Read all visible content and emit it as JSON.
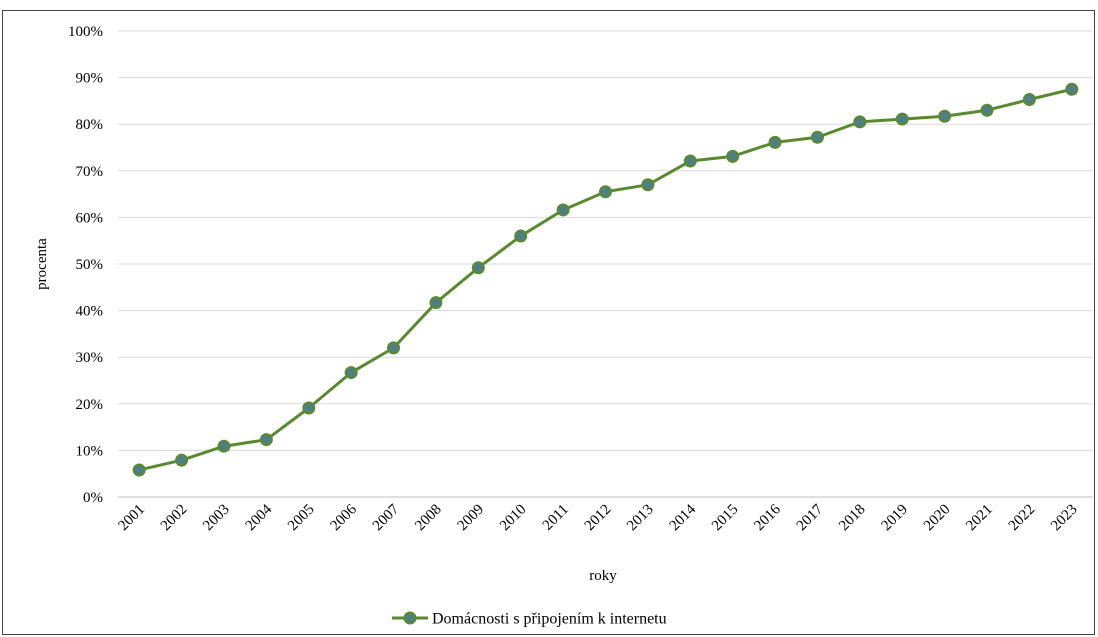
{
  "caption": "",
  "chart_data": {
    "type": "line",
    "title": "",
    "xlabel": "roky",
    "ylabel": "procenta",
    "ylim": [
      0,
      100
    ],
    "y_tick_labels": [
      "0%",
      "10%",
      "20%",
      "30%",
      "40%",
      "50%",
      "60%",
      "70%",
      "80%",
      "90%",
      "100%"
    ],
    "categories": [
      "2001",
      "2002",
      "2003",
      "2004",
      "2005",
      "2006",
      "2007",
      "2008",
      "2009",
      "2010",
      "2011",
      "2012",
      "2013",
      "2014",
      "2015",
      "2016",
      "2017",
      "2018",
      "2019",
      "2020",
      "2021",
      "2022",
      "2023"
    ],
    "series": [
      {
        "name": "Domácnosti s připojením k internetu",
        "values": [
          5.8,
          7.9,
          10.9,
          12.3,
          19.1,
          26.7,
          32.0,
          41.7,
          49.2,
          56.0,
          61.6,
          65.5,
          67.0,
          72.1,
          73.1,
          76.1,
          77.2,
          80.5,
          81.1,
          81.7,
          83.0,
          85.3,
          87.5
        ],
        "color": "#5a8a2e",
        "marker_color": "#4f7f86"
      }
    ],
    "grid": true,
    "legend_position": "bottom-center"
  }
}
